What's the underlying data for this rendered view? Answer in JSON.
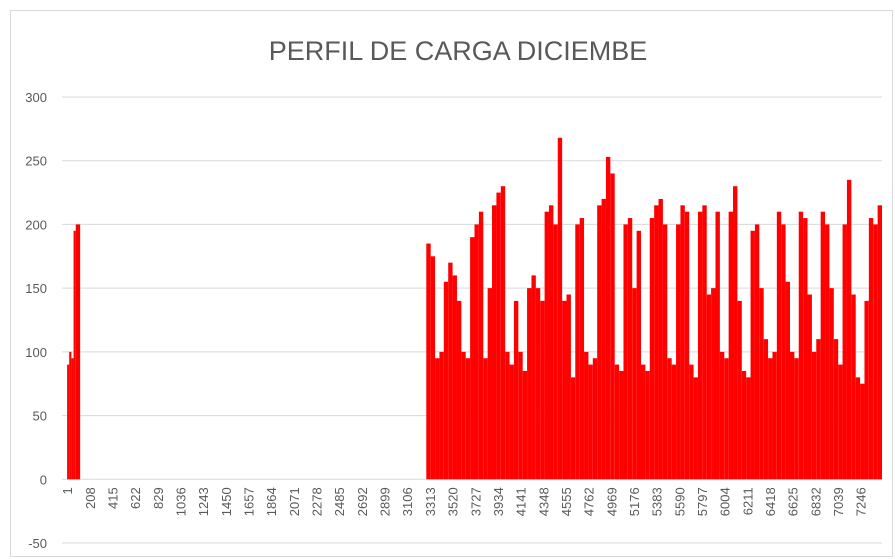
{
  "chart_data": {
    "type": "bar",
    "title": "PERFIL DE CARGA DICIEMBE",
    "color": "#ff0000",
    "grid": true,
    "xlim": [
      0,
      7440
    ],
    "ylim": [
      -50,
      300
    ],
    "yticks": [
      -50,
      0,
      50,
      100,
      150,
      200,
      250,
      300
    ],
    "xticks": [
      1,
      208,
      415,
      622,
      829,
      1036,
      1243,
      1450,
      1657,
      1864,
      2071,
      2278,
      2485,
      2692,
      2899,
      3106,
      3313,
      3520,
      3727,
      3934,
      4141,
      4348,
      4555,
      4762,
      4969,
      5176,
      5383,
      5590,
      5797,
      6004,
      6211,
      6418,
      6625,
      6832,
      7039,
      7246
    ],
    "x": [
      1,
      20,
      40,
      60,
      80,
      3280,
      3320,
      3360,
      3400,
      3440,
      3480,
      3520,
      3560,
      3600,
      3640,
      3680,
      3720,
      3760,
      3800,
      3840,
      3880,
      3920,
      3960,
      4000,
      4040,
      4080,
      4120,
      4160,
      4200,
      4240,
      4280,
      4320,
      4360,
      4400,
      4440,
      4480,
      4520,
      4560,
      4600,
      4640,
      4680,
      4720,
      4760,
      4800,
      4840,
      4880,
      4920,
      4960,
      5000,
      5040,
      5080,
      5120,
      5160,
      5200,
      5240,
      5280,
      5320,
      5360,
      5400,
      5440,
      5480,
      5520,
      5560,
      5600,
      5640,
      5680,
      5720,
      5760,
      5800,
      5840,
      5880,
      5920,
      5960,
      6000,
      6040,
      6080,
      6120,
      6160,
      6200,
      6240,
      6280,
      6320,
      6360,
      6400,
      6440,
      6480,
      6520,
      6560,
      6600,
      6640,
      6680,
      6720,
      6760,
      6800,
      6840,
      6880,
      6920,
      6960,
      7000,
      7040,
      7080,
      7120,
      7160,
      7200,
      7240,
      7280,
      7320,
      7360,
      7400
    ],
    "values": [
      90,
      100,
      95,
      195,
      200,
      185,
      175,
      95,
      100,
      155,
      170,
      160,
      140,
      100,
      95,
      190,
      200,
      210,
      95,
      150,
      215,
      225,
      230,
      100,
      90,
      140,
      100,
      85,
      150,
      160,
      150,
      140,
      210,
      215,
      200,
      268,
      140,
      145,
      80,
      200,
      205,
      100,
      90,
      95,
      215,
      220,
      253,
      240,
      90,
      85,
      200,
      205,
      150,
      195,
      90,
      85,
      205,
      215,
      220,
      200,
      95,
      90,
      200,
      215,
      210,
      90,
      80,
      210,
      215,
      145,
      150,
      210,
      100,
      95,
      210,
      230,
      140,
      85,
      80,
      195,
      200,
      150,
      110,
      95,
      100,
      210,
      200,
      155,
      100,
      95,
      210,
      205,
      145,
      100,
      110,
      210,
      200,
      150,
      110,
      90,
      200,
      235,
      145,
      80,
      75,
      140,
      205,
      200,
      215
    ]
  }
}
